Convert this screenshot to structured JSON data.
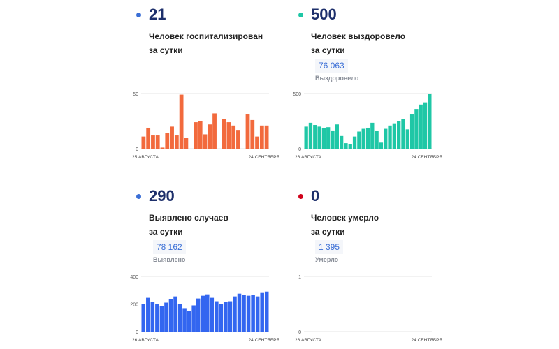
{
  "panels": [
    {
      "id": "hospitalized",
      "dot_color": "#3b6fd6",
      "value": "21",
      "desc_line1": "Человек госпитализирован",
      "desc_line2": "за сутки",
      "total": "",
      "total_label": ""
    },
    {
      "id": "recovered",
      "dot_color": "#1fc7a6",
      "value": "500",
      "desc_line1": "Человек выздоровело",
      "desc_line2": "за сутки",
      "total": "76 063",
      "total_label": "Выздоровело"
    },
    {
      "id": "cases",
      "dot_color": "#3b6fd6",
      "value": "290",
      "desc_line1": "Выявлено случаев",
      "desc_line2": "за сутки",
      "total": "78 162",
      "total_label": "Выявлено"
    },
    {
      "id": "deaths",
      "dot_color": "#d0021b",
      "value": "0",
      "desc_line1": "Человек умерло",
      "desc_line2": "за сутки",
      "total": "1 395",
      "total_label": "Умерло"
    }
  ],
  "chart_data": [
    {
      "type": "bar",
      "color": "#f26a3d",
      "x_start_label": "25 АВГУСТА",
      "x_end_label": "24 СЕНТЯБРЯ",
      "y_ticks": [
        0,
        50
      ],
      "ylim": [
        0,
        50
      ],
      "values": [
        11,
        19,
        12,
        12,
        1,
        14,
        20,
        12,
        49,
        10,
        0,
        24,
        25,
        13,
        22,
        32,
        0,
        27,
        24,
        21,
        17,
        0,
        31,
        26,
        11,
        21,
        21
      ]
    },
    {
      "type": "bar",
      "color": "#1fc7a6",
      "x_start_label": "26 АВГУСТА",
      "x_end_label": "24 СЕНТЯБРЯ",
      "y_ticks": [
        0,
        500
      ],
      "ylim": [
        0,
        500
      ],
      "values": [
        200,
        235,
        215,
        200,
        190,
        195,
        165,
        220,
        115,
        50,
        40,
        110,
        155,
        180,
        190,
        235,
        160,
        55,
        180,
        210,
        230,
        250,
        270,
        175,
        310,
        360,
        400,
        420,
        500
      ]
    },
    {
      "type": "bar",
      "color": "#3366f0",
      "x_start_label": "26 АВГУСТА",
      "x_end_label": "24 СЕНТЯБРЯ",
      "y_ticks": [
        0,
        200,
        400
      ],
      "ylim": [
        0,
        400
      ],
      "values": [
        200,
        245,
        215,
        200,
        185,
        210,
        235,
        255,
        200,
        170,
        150,
        190,
        240,
        260,
        270,
        245,
        220,
        200,
        215,
        220,
        255,
        275,
        265,
        260,
        265,
        255,
        280,
        290
      ]
    },
    {
      "type": "bar",
      "color": "#d0021b",
      "x_start_label": "26 АВГУСТА",
      "x_end_label": "24 СЕНТЯБРЯ",
      "y_ticks": [
        0,
        1
      ],
      "ylim": [
        0,
        1
      ],
      "values": []
    }
  ]
}
